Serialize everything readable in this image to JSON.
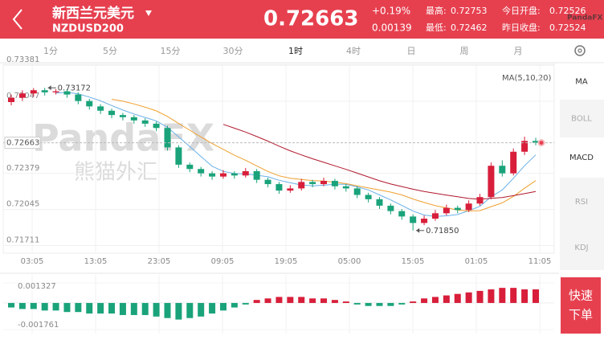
{
  "header": {
    "title": "新西兰元美元",
    "symbol": "NZDUSD200",
    "price": "0.72663",
    "change_pct": "+0.19%",
    "change": "0.00139",
    "high_label": "最高:",
    "high": "0.72753",
    "low_label": "最低:",
    "low": "0.72462",
    "open_label": "今日开盘:",
    "open": "0.72526",
    "prev_close_label": "昨日收盘:",
    "prev_close": "0.72524",
    "logo": "PandaFX"
  },
  "tabs": [
    "1分",
    "5分",
    "15分",
    "30分",
    "1时",
    "4时",
    "日",
    "周",
    "月"
  ],
  "selected_tab": 4,
  "indicators": [
    "MA",
    "BOLL",
    "MACD",
    "RSI",
    "KDJ"
  ],
  "active_indicators": [
    0,
    2
  ],
  "order_button": [
    "快速",
    "下单"
  ],
  "watermark": {
    "brand": "PandaFX",
    "cn": "熊猫外汇"
  },
  "chart_data": {
    "type": "candlestick",
    "legend": "MA(5,10,20)",
    "times": [
      "03:05",
      "13:05",
      "23:05",
      "09:05",
      "19:05",
      "05:00",
      "15:05",
      "01:05",
      "11:05"
    ],
    "open": [
      0.7304,
      0.7308,
      0.7312,
      0.7315,
      0.7313,
      0.7314,
      0.7311,
      0.7305,
      0.73,
      0.7296,
      0.7292,
      0.729,
      0.7287,
      0.7284,
      0.728,
      0.7262,
      0.7246,
      0.7242,
      0.7238,
      0.7235,
      0.7238,
      0.7236,
      0.724,
      0.7232,
      0.7228,
      0.7222,
      0.7224,
      0.723,
      0.7228,
      0.7231,
      0.7226,
      0.7224,
      0.7218,
      0.7214,
      0.7208,
      0.7203,
      0.7198,
      0.7192,
      0.7196,
      0.7201,
      0.7206,
      0.7204,
      0.721,
      0.7216,
      0.7245,
      0.7238,
      0.7258,
      0.7268
    ],
    "high": [
      0.7311,
      0.7315,
      0.7317,
      0.73172,
      0.7316,
      0.7316,
      0.7313,
      0.7307,
      0.7302,
      0.7298,
      0.7294,
      0.7292,
      0.7289,
      0.7286,
      0.7282,
      0.7264,
      0.7248,
      0.7244,
      0.724,
      0.7241,
      0.724,
      0.7243,
      0.7242,
      0.7234,
      0.723,
      0.7227,
      0.7233,
      0.7232,
      0.7234,
      0.7233,
      0.7228,
      0.7226,
      0.722,
      0.7216,
      0.721,
      0.7205,
      0.72,
      0.7199,
      0.7204,
      0.7209,
      0.7208,
      0.7213,
      0.7219,
      0.7248,
      0.725,
      0.7261,
      0.7272,
      0.7271
    ],
    "low": [
      0.7301,
      0.7305,
      0.7309,
      0.731,
      0.7311,
      0.7308,
      0.7302,
      0.7297,
      0.7293,
      0.7289,
      0.7287,
      0.7284,
      0.7281,
      0.7277,
      0.7259,
      0.7243,
      0.7239,
      0.7235,
      0.7232,
      0.7233,
      0.7233,
      0.7234,
      0.7229,
      0.7225,
      0.7219,
      0.722,
      0.7222,
      0.7225,
      0.7226,
      0.7223,
      0.7221,
      0.7215,
      0.7211,
      0.7205,
      0.72,
      0.7195,
      0.7185,
      0.719,
      0.7194,
      0.7199,
      0.7201,
      0.7202,
      0.7208,
      0.7214,
      0.7235,
      0.7236,
      0.7255,
      0.7264
    ],
    "close": [
      0.7308,
      0.7312,
      0.7315,
      0.7313,
      0.7314,
      0.7311,
      0.7305,
      0.73,
      0.7296,
      0.7292,
      0.729,
      0.7287,
      0.7284,
      0.728,
      0.7262,
      0.7246,
      0.7242,
      0.7238,
      0.7235,
      0.7238,
      0.7236,
      0.724,
      0.7232,
      0.7228,
      0.7222,
      0.7224,
      0.723,
      0.7228,
      0.7231,
      0.7226,
      0.7224,
      0.7218,
      0.7214,
      0.7208,
      0.7203,
      0.7198,
      0.7192,
      0.7196,
      0.7201,
      0.7206,
      0.7204,
      0.721,
      0.7216,
      0.7245,
      0.7238,
      0.7258,
      0.7268,
      0.72663
    ],
    "ylim": [
      0.7164,
      0.7339
    ],
    "yticks": [
      0.71711,
      0.72045,
      0.72379,
      0.73047,
      0.73381
    ],
    "current_price": 0.72663,
    "annotations": [
      {
        "index": 3,
        "value": 0.73172
      },
      {
        "index": 36,
        "value": {
          "value": 0.7185,
          "label": "0.71850"
        }
      }
    ],
    "up_color": "#d81e3a",
    "down_color": "#1aa37a",
    "ma_colors": [
      "#6ab0e8",
      "#f0a030",
      "#b0182c"
    ],
    "macd": {
      "values": [
        -0.0003,
        -0.0004,
        -0.0004,
        -0.0005,
        -0.0005,
        -0.0006,
        -0.0006,
        -0.0007,
        -0.0007,
        -0.0007,
        -0.0008,
        -0.0008,
        -0.0008,
        -0.0009,
        -0.001,
        -0.0011,
        -0.001,
        -0.0009,
        -0.0007,
        -0.0005,
        -0.0003,
        -0.0001,
        0.0002,
        0.0003,
        0.0004,
        0.0004,
        0.0004,
        0.0003,
        0.0003,
        0.0002,
        0.0001,
        -0.0001,
        -0.0002,
        -0.0002,
        -0.0002,
        -0.0001,
        0.0001,
        0.0003,
        0.0004,
        0.0005,
        0.0006,
        0.0007,
        0.0008,
        0.0009,
        0.001,
        0.001,
        0.0009,
        0.0009
      ],
      "ylim": [
        -0.001761,
        0.001327
      ],
      "yticks": [
        0.001327,
        -0.001761
      ]
    }
  }
}
